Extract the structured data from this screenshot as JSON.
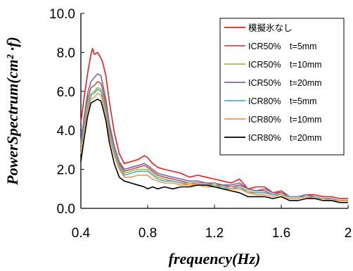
{
  "chart_data": {
    "type": "line",
    "xlabel": "frequency(Hz)",
    "ylabel": "PowerSpectrum(cm² ·f)",
    "xlim": [
      0.4,
      2.0
    ],
    "ylim": [
      0.0,
      10.0
    ],
    "xticks": [
      "0.4",
      "0.8",
      "1.2",
      "1.6",
      "2"
    ],
    "yticks": [
      "0.0",
      "2.0",
      "4.0",
      "6.0",
      "8.0",
      "10.0"
    ],
    "grid": false,
    "legend_position": "top-right",
    "series": [
      {
        "name": "模擬氷なし",
        "color": "#ee1c1c",
        "x": [
          0.4,
          0.42,
          0.44,
          0.46,
          0.47,
          0.48,
          0.5,
          0.52,
          0.53,
          0.55,
          0.57,
          0.6,
          0.63,
          0.66,
          0.7,
          0.74,
          0.78,
          0.8,
          0.83,
          0.86,
          0.9,
          0.95,
          1.0,
          1.05,
          1.1,
          1.15,
          1.2,
          1.25,
          1.3,
          1.35,
          1.4,
          1.45,
          1.5,
          1.55,
          1.6,
          1.65,
          1.7,
          1.75,
          1.8,
          1.85,
          1.9,
          1.95,
          2.0
        ],
        "y": [
          4.4,
          5.7,
          6.9,
          7.9,
          8.2,
          7.9,
          8.0,
          7.7,
          7.5,
          6.8,
          5.5,
          3.9,
          2.8,
          2.3,
          2.4,
          2.5,
          2.7,
          2.6,
          2.3,
          2.1,
          2.0,
          1.9,
          1.8,
          1.6,
          1.7,
          1.6,
          1.5,
          1.4,
          1.3,
          1.5,
          1.0,
          1.1,
          1.1,
          0.8,
          0.9,
          0.6,
          0.6,
          0.7,
          0.7,
          0.6,
          0.6,
          0.5,
          0.5
        ]
      },
      {
        "name": "ICR50%　t=5mm",
        "color": "#c0504d",
        "x": [
          0.4,
          0.42,
          0.44,
          0.46,
          0.48,
          0.5,
          0.52,
          0.53,
          0.55,
          0.57,
          0.6,
          0.63,
          0.66,
          0.7,
          0.74,
          0.78,
          0.8,
          0.83,
          0.86,
          0.9,
          0.95,
          1.0,
          1.05,
          1.1,
          1.15,
          1.2,
          1.25,
          1.3,
          1.35,
          1.4,
          1.45,
          1.5,
          1.55,
          1.6,
          1.65,
          1.7,
          1.75,
          1.8,
          1.85,
          1.9,
          1.95,
          2.0
        ],
        "y": [
          3.3,
          4.5,
          5.6,
          6.2,
          6.3,
          6.5,
          6.4,
          6.1,
          5.3,
          4.2,
          3.1,
          2.3,
          1.9,
          2.0,
          2.1,
          2.2,
          2.1,
          1.9,
          1.7,
          1.6,
          1.5,
          1.4,
          1.3,
          1.3,
          1.3,
          1.2,
          1.2,
          1.1,
          1.2,
          1.0,
          0.9,
          0.9,
          0.7,
          0.8,
          0.6,
          0.6,
          0.7,
          0.6,
          0.5,
          0.5,
          0.4,
          0.4
        ]
      },
      {
        "name": "ICR50%　t=10mm",
        "color": "#9bbb59",
        "x": [
          0.4,
          0.42,
          0.44,
          0.46,
          0.48,
          0.5,
          0.52,
          0.53,
          0.55,
          0.57,
          0.6,
          0.63,
          0.66,
          0.7,
          0.74,
          0.78,
          0.8,
          0.83,
          0.86,
          0.9,
          0.95,
          1.0,
          1.05,
          1.1,
          1.15,
          1.2,
          1.25,
          1.3,
          1.35,
          1.4,
          1.45,
          1.5,
          1.55,
          1.6,
          1.65,
          1.7,
          1.75,
          1.8,
          1.85,
          1.9,
          1.95,
          2.0
        ],
        "y": [
          3.2,
          4.4,
          5.4,
          5.9,
          6.0,
          6.2,
          6.1,
          5.8,
          5.1,
          4.0,
          3.0,
          2.2,
          1.8,
          1.9,
          2.0,
          2.0,
          2.0,
          1.8,
          1.6,
          1.5,
          1.4,
          1.3,
          1.3,
          1.2,
          1.2,
          1.2,
          1.1,
          1.1,
          1.1,
          0.9,
          0.8,
          0.8,
          0.7,
          0.8,
          0.6,
          0.6,
          0.7,
          0.6,
          0.5,
          0.5,
          0.4,
          0.4
        ]
      },
      {
        "name": "ICR50%　t=20mm",
        "color": "#8064a2",
        "x": [
          0.4,
          0.42,
          0.44,
          0.46,
          0.48,
          0.5,
          0.52,
          0.53,
          0.55,
          0.57,
          0.6,
          0.63,
          0.66,
          0.7,
          0.74,
          0.78,
          0.8,
          0.83,
          0.86,
          0.9,
          0.95,
          1.0,
          1.05,
          1.1,
          1.15,
          1.2,
          1.25,
          1.3,
          1.35,
          1.4,
          1.45,
          1.5,
          1.55,
          1.6,
          1.65,
          1.7,
          1.75,
          1.8,
          1.85,
          1.9,
          1.95,
          2.0
        ],
        "y": [
          3.4,
          4.7,
          5.9,
          6.5,
          6.7,
          6.9,
          6.8,
          6.4,
          5.6,
          4.4,
          3.2,
          2.4,
          2.0,
          2.1,
          2.2,
          2.3,
          2.2,
          2.0,
          1.8,
          1.7,
          1.6,
          1.5,
          1.4,
          1.4,
          1.3,
          1.3,
          1.2,
          1.2,
          1.3,
          1.0,
          0.9,
          1.0,
          0.8,
          0.8,
          0.6,
          0.6,
          0.7,
          0.6,
          0.5,
          0.5,
          0.4,
          0.4
        ]
      },
      {
        "name": "ICR80%　t=5mm",
        "color": "#4bacc6",
        "x": [
          0.4,
          0.42,
          0.44,
          0.46,
          0.48,
          0.5,
          0.52,
          0.53,
          0.55,
          0.57,
          0.6,
          0.63,
          0.66,
          0.7,
          0.74,
          0.78,
          0.8,
          0.83,
          0.86,
          0.9,
          0.95,
          1.0,
          1.05,
          1.1,
          1.15,
          1.2,
          1.25,
          1.3,
          1.35,
          1.4,
          1.45,
          1.5,
          1.55,
          1.6,
          1.65,
          1.7,
          1.75,
          1.8,
          1.85,
          1.9,
          1.95,
          2.0
        ],
        "y": [
          3.0,
          4.2,
          5.2,
          5.8,
          5.9,
          6.1,
          6.0,
          5.7,
          5.0,
          3.9,
          2.9,
          2.1,
          1.7,
          1.8,
          1.9,
          1.9,
          1.9,
          1.7,
          1.5,
          1.4,
          1.4,
          1.3,
          1.2,
          1.2,
          1.2,
          1.1,
          1.1,
          1.0,
          1.1,
          0.8,
          0.8,
          0.8,
          0.7,
          0.7,
          0.6,
          0.6,
          0.6,
          0.6,
          0.5,
          0.5,
          0.4,
          0.4
        ]
      },
      {
        "name": "ICR80%　t=10mm",
        "color": "#f79646",
        "x": [
          0.4,
          0.42,
          0.44,
          0.46,
          0.48,
          0.5,
          0.52,
          0.53,
          0.55,
          0.57,
          0.6,
          0.63,
          0.66,
          0.7,
          0.74,
          0.78,
          0.8,
          0.83,
          0.86,
          0.9,
          0.95,
          1.0,
          1.05,
          1.1,
          1.15,
          1.2,
          1.25,
          1.3,
          1.35,
          1.4,
          1.45,
          1.5,
          1.55,
          1.6,
          1.65,
          1.7,
          1.75,
          1.8,
          1.85,
          1.9,
          1.95,
          2.0
        ],
        "y": [
          2.8,
          4.0,
          5.0,
          5.6,
          5.7,
          5.9,
          5.8,
          5.5,
          4.8,
          3.7,
          2.7,
          2.0,
          1.6,
          1.6,
          1.7,
          1.7,
          1.7,
          1.5,
          1.4,
          1.3,
          1.3,
          1.2,
          1.2,
          1.2,
          1.1,
          1.1,
          1.0,
          1.0,
          1.0,
          0.8,
          0.7,
          0.7,
          0.6,
          0.7,
          0.5,
          0.5,
          0.6,
          0.5,
          0.5,
          0.4,
          0.4,
          0.4
        ]
      },
      {
        "name": "ICR80%　t=20mm",
        "color": "#000000",
        "x": [
          0.4,
          0.42,
          0.44,
          0.46,
          0.48,
          0.5,
          0.52,
          0.53,
          0.55,
          0.57,
          0.6,
          0.63,
          0.66,
          0.7,
          0.74,
          0.78,
          0.8,
          0.83,
          0.86,
          0.9,
          0.95,
          1.0,
          1.05,
          1.1,
          1.15,
          1.2,
          1.25,
          1.3,
          1.35,
          1.4,
          1.45,
          1.5,
          1.55,
          1.6,
          1.65,
          1.7,
          1.75,
          1.8,
          1.85,
          1.9,
          1.95,
          2.0
        ],
        "y": [
          2.4,
          3.6,
          4.7,
          5.4,
          5.5,
          5.6,
          5.5,
          5.2,
          4.5,
          3.4,
          2.3,
          1.6,
          1.4,
          1.3,
          1.2,
          1.1,
          1.0,
          1.1,
          1.0,
          1.1,
          1.0,
          1.1,
          1.1,
          1.2,
          1.2,
          1.1,
          1.0,
          0.9,
          0.8,
          0.6,
          0.6,
          0.6,
          0.5,
          0.6,
          0.4,
          0.4,
          0.5,
          0.5,
          0.4,
          0.4,
          0.3,
          0.3
        ]
      }
    ]
  }
}
